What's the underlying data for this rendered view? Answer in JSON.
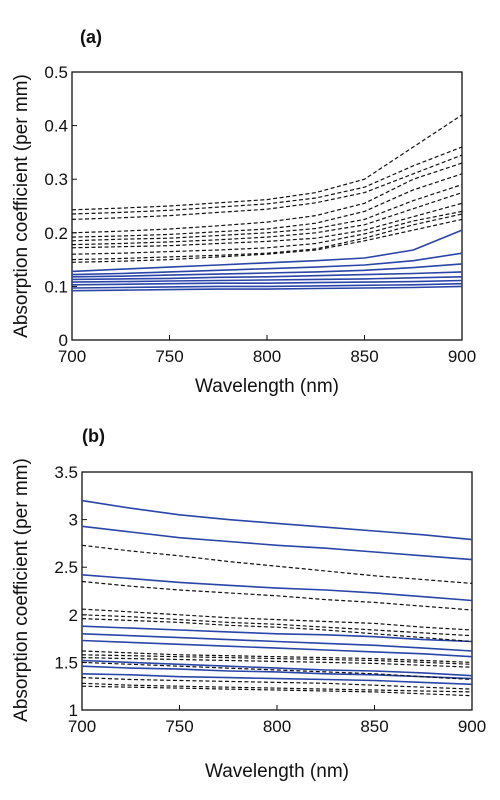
{
  "panels": [
    {
      "label": "(a)",
      "chart_data": {
        "type": "line",
        "xlabel": "Wavelength (nm)",
        "ylabel": "Absorption coefficient (per mm)",
        "xlim": [
          700,
          900
        ],
        "ylim": [
          0,
          0.5
        ],
        "xticks": [
          700,
          750,
          800,
          850,
          900
        ],
        "yticks": [
          0,
          0.1,
          0.2,
          0.3,
          0.4,
          0.5
        ],
        "ytick_labels": [
          "0",
          "0.1",
          "0.2",
          "0.3",
          "0.4",
          "0.5"
        ],
        "grid": false,
        "x": [
          700,
          725,
          750,
          775,
          800,
          825,
          850,
          875,
          900
        ],
        "solid_color": "#2a45a8",
        "dashed_color": "#111111",
        "series": [
          {
            "style": "solid",
            "values": [
              0.128,
              0.132,
              0.136,
              0.14,
              0.144,
              0.148,
              0.153,
              0.168,
              0.205
            ]
          },
          {
            "style": "solid",
            "values": [
              0.122,
              0.124,
              0.127,
              0.13,
              0.133,
              0.136,
              0.14,
              0.148,
              0.162
            ]
          },
          {
            "style": "solid",
            "values": [
              0.118,
              0.119,
              0.121,
              0.123,
              0.125,
              0.127,
              0.13,
              0.135,
              0.142
            ]
          },
          {
            "style": "solid",
            "values": [
              0.113,
              0.114,
              0.115,
              0.117,
              0.118,
              0.12,
              0.122,
              0.124,
              0.127
            ]
          },
          {
            "style": "solid",
            "values": [
              0.108,
              0.109,
              0.11,
              0.111,
              0.112,
              0.113,
              0.114,
              0.116,
              0.118
            ]
          },
          {
            "style": "solid",
            "values": [
              0.103,
              0.104,
              0.105,
              0.106,
              0.106,
              0.107,
              0.108,
              0.109,
              0.111
            ]
          },
          {
            "style": "solid",
            "values": [
              0.097,
              0.098,
              0.099,
              0.1,
              0.1,
              0.101,
              0.102,
              0.103,
              0.105
            ]
          },
          {
            "style": "solid",
            "values": [
              0.092,
              0.093,
              0.094,
              0.095,
              0.095,
              0.096,
              0.097,
              0.098,
              0.1
            ]
          },
          {
            "style": "dashed",
            "values": [
              0.243,
              0.246,
              0.25,
              0.256,
              0.262,
              0.275,
              0.3,
              0.36,
              0.42
            ]
          },
          {
            "style": "dashed",
            "values": [
              0.235,
              0.238,
              0.242,
              0.248,
              0.254,
              0.265,
              0.285,
              0.325,
              0.36
            ]
          },
          {
            "style": "dashed",
            "values": [
              0.225,
              0.228,
              0.232,
              0.238,
              0.244,
              0.256,
              0.275,
              0.31,
              0.345
            ]
          },
          {
            "style": "dashed",
            "values": [
              0.2,
              0.203,
              0.207,
              0.213,
              0.22,
              0.232,
              0.255,
              0.3,
              0.33
            ]
          },
          {
            "style": "dashed",
            "values": [
              0.192,
              0.194,
              0.197,
              0.202,
              0.207,
              0.218,
              0.24,
              0.28,
              0.31
            ]
          },
          {
            "style": "dashed",
            "values": [
              0.185,
              0.188,
              0.19,
              0.195,
              0.2,
              0.208,
              0.225,
              0.26,
              0.29
            ]
          },
          {
            "style": "dashed",
            "values": [
              0.178,
              0.18,
              0.183,
              0.187,
              0.192,
              0.2,
              0.215,
              0.245,
              0.275
            ]
          },
          {
            "style": "dashed",
            "values": [
              0.172,
              0.174,
              0.176,
              0.18,
              0.184,
              0.19,
              0.205,
              0.23,
              0.255
            ]
          },
          {
            "style": "dashed",
            "values": [
              0.16,
              0.162,
              0.165,
              0.168,
              0.172,
              0.18,
              0.198,
              0.222,
              0.24
            ]
          },
          {
            "style": "dashed",
            "values": [
              0.15,
              0.152,
              0.155,
              0.158,
              0.162,
              0.17,
              0.19,
              0.215,
              0.235
            ]
          },
          {
            "style": "dashed",
            "values": [
              0.145,
              0.147,
              0.15,
              0.155,
              0.16,
              0.168,
              0.185,
              0.205,
              0.225
            ]
          }
        ]
      }
    },
    {
      "label": "(b)",
      "chart_data": {
        "type": "line",
        "xlabel": "Wavelength (nm)",
        "ylabel": "Absorption coefficient (per mm)",
        "xlim": [
          700,
          900
        ],
        "ylim": [
          1,
          3.5
        ],
        "xticks": [
          700,
          750,
          800,
          850,
          900
        ],
        "yticks": [
          1,
          1.5,
          2,
          2.5,
          3,
          3.5
        ],
        "ytick_labels": [
          "1",
          "1.5",
          "2",
          "2.5",
          "3",
          "3.5"
        ],
        "grid": false,
        "x": [
          700,
          725,
          750,
          775,
          800,
          825,
          850,
          875,
          900
        ],
        "solid_color": "#2a45a8",
        "dashed_color": "#111111",
        "series": [
          {
            "style": "solid",
            "values": [
              3.2,
              3.12,
              3.05,
              3.0,
              2.96,
              2.92,
              2.88,
              2.84,
              2.79
            ]
          },
          {
            "style": "solid",
            "values": [
              2.93,
              2.87,
              2.81,
              2.77,
              2.73,
              2.7,
              2.66,
              2.62,
              2.58
            ]
          },
          {
            "style": "solid",
            "values": [
              2.42,
              2.38,
              2.34,
              2.31,
              2.28,
              2.26,
              2.23,
              2.19,
              2.15
            ]
          },
          {
            "style": "solid",
            "values": [
              1.88,
              1.86,
              1.84,
              1.82,
              1.8,
              1.79,
              1.77,
              1.74,
              1.72
            ]
          },
          {
            "style": "solid",
            "values": [
              1.8,
              1.78,
              1.76,
              1.74,
              1.72,
              1.7,
              1.68,
              1.65,
              1.62
            ]
          },
          {
            "style": "solid",
            "values": [
              1.73,
              1.71,
              1.69,
              1.67,
              1.65,
              1.63,
              1.61,
              1.59,
              1.56
            ]
          },
          {
            "style": "solid",
            "values": [
              1.52,
              1.5,
              1.48,
              1.46,
              1.44,
              1.42,
              1.41,
              1.39,
              1.36
            ]
          },
          {
            "style": "solid",
            "values": [
              1.46,
              1.44,
              1.43,
              1.41,
              1.4,
              1.38,
              1.37,
              1.35,
              1.33
            ]
          },
          {
            "style": "solid",
            "values": [
              1.38,
              1.37,
              1.35,
              1.34,
              1.33,
              1.32,
              1.31,
              1.29,
              1.27
            ]
          },
          {
            "style": "dashed",
            "values": [
              2.73,
              2.67,
              2.62,
              2.56,
              2.51,
              2.46,
              2.41,
              2.37,
              2.33
            ]
          },
          {
            "style": "dashed",
            "values": [
              2.35,
              2.3,
              2.26,
              2.23,
              2.2,
              2.16,
              2.13,
              2.09,
              2.05
            ]
          },
          {
            "style": "dashed",
            "values": [
              2.06,
              2.03,
              2.0,
              1.97,
              1.95,
              1.93,
              1.91,
              1.87,
              1.84
            ]
          },
          {
            "style": "dashed",
            "values": [
              2.0,
              1.98,
              1.95,
              1.92,
              1.9,
              1.87,
              1.84,
              1.81,
              1.78
            ]
          },
          {
            "style": "dashed",
            "values": [
              1.96,
              1.94,
              1.92,
              1.89,
              1.87,
              1.84,
              1.8,
              1.76,
              1.72
            ]
          },
          {
            "style": "dashed",
            "values": [
              1.62,
              1.6,
              1.58,
              1.57,
              1.56,
              1.55,
              1.54,
              1.52,
              1.5
            ]
          },
          {
            "style": "dashed",
            "values": [
              1.58,
              1.57,
              1.56,
              1.55,
              1.54,
              1.53,
              1.52,
              1.5,
              1.48
            ]
          },
          {
            "style": "dashed",
            "values": [
              1.55,
              1.54,
              1.53,
              1.52,
              1.51,
              1.5,
              1.49,
              1.47,
              1.45
            ]
          },
          {
            "style": "dashed",
            "values": [
              1.5,
              1.48,
              1.46,
              1.44,
              1.42,
              1.4,
              1.38,
              1.35,
              1.32
            ]
          },
          {
            "style": "dashed",
            "values": [
              1.34,
              1.32,
              1.31,
              1.3,
              1.29,
              1.28,
              1.26,
              1.24,
              1.22
            ]
          },
          {
            "style": "dashed",
            "values": [
              1.28,
              1.26,
              1.25,
              1.24,
              1.23,
              1.22,
              1.21,
              1.2,
              1.19
            ]
          },
          {
            "style": "dashed",
            "values": [
              1.25,
              1.24,
              1.23,
              1.22,
              1.21,
              1.2,
              1.19,
              1.17,
              1.15
            ]
          }
        ]
      }
    }
  ]
}
